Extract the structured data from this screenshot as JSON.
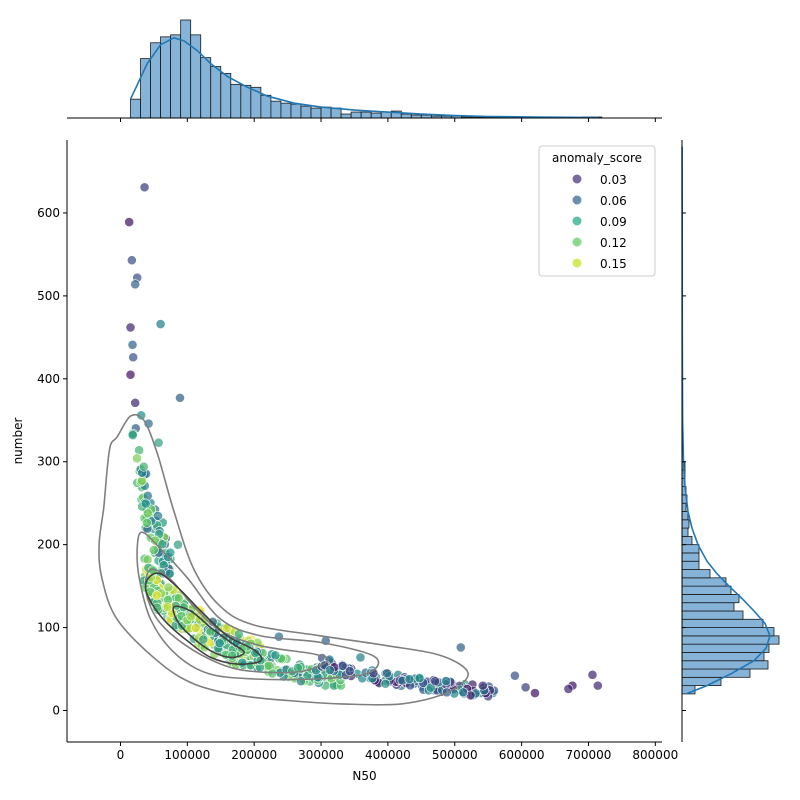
{
  "colors": {
    "hist_fill": "#86b4d9",
    "hist_edge": "#1a1a1a",
    "kde_line": "#1f77b4",
    "contour": "#7f7f7f",
    "contour_inner": "#404040"
  },
  "chart_data": {
    "type": "scatter",
    "layout": "jointplot",
    "xlabel": "N50",
    "ylabel": "number",
    "xlim": [
      -80000,
      810000
    ],
    "ylim": [
      -38,
      688
    ],
    "xticks": [
      0,
      100000,
      200000,
      300000,
      400000,
      500000,
      600000,
      700000,
      800000
    ],
    "xtick_labels": [
      "0",
      "100000",
      "200000",
      "300000",
      "400000",
      "500000",
      "600000",
      "700000",
      "800000"
    ],
    "yticks": [
      0,
      100,
      200,
      300,
      400,
      500,
      600
    ],
    "ytick_labels": [
      "0",
      "100",
      "200",
      "300",
      "400",
      "500",
      "600"
    ],
    "grid": false,
    "legend": {
      "title": "anomaly_score",
      "placement": "top-right",
      "entries": [
        {
          "label": "0.03",
          "color": "#46317e"
        },
        {
          "label": "0.06",
          "color": "#33638d"
        },
        {
          "label": "0.09",
          "color": "#21a685"
        },
        {
          "label": "0.12",
          "color": "#5ec962"
        },
        {
          "label": "0.15",
          "color": "#c6e021"
        }
      ]
    },
    "color_scale": {
      "min": 0.01,
      "max": 0.17,
      "stops": [
        "#440154",
        "#3b528b",
        "#21918c",
        "#5ec962",
        "#fde725"
      ]
    },
    "outliers": [
      {
        "x": 36000,
        "y": 631,
        "score": 0.04
      },
      {
        "x": 13000,
        "y": 589,
        "score": 0.02
      },
      {
        "x": 17000,
        "y": 543,
        "score": 0.05
      },
      {
        "x": 25000,
        "y": 522,
        "score": 0.05
      },
      {
        "x": 22000,
        "y": 514,
        "score": 0.06
      },
      {
        "x": 60000,
        "y": 466,
        "score": 0.08
      },
      {
        "x": 15000,
        "y": 462,
        "score": 0.03
      },
      {
        "x": 18000,
        "y": 441,
        "score": 0.06
      },
      {
        "x": 19000,
        "y": 426,
        "score": 0.05
      },
      {
        "x": 15000,
        "y": 405,
        "score": 0.02
      },
      {
        "x": 89000,
        "y": 377,
        "score": 0.06
      },
      {
        "x": 22000,
        "y": 371,
        "score": 0.03
      },
      {
        "x": 509000,
        "y": 76,
        "score": 0.06
      },
      {
        "x": 706000,
        "y": 43,
        "score": 0.03
      },
      {
        "x": 714000,
        "y": 30,
        "score": 0.03
      },
      {
        "x": 676000,
        "y": 30,
        "score": 0.02
      },
      {
        "x": 670000,
        "y": 26,
        "score": 0.03
      },
      {
        "x": 620000,
        "y": 21,
        "score": 0.02
      },
      {
        "x": 606000,
        "y": 28,
        "score": 0.04
      },
      {
        "x": 590000,
        "y": 42,
        "score": 0.05
      },
      {
        "x": 57000,
        "y": 323,
        "score": 0.1
      },
      {
        "x": 42000,
        "y": 346,
        "score": 0.07
      },
      {
        "x": 31000,
        "y": 356,
        "score": 0.09
      },
      {
        "x": 86000,
        "y": 200,
        "score": 0.1
      },
      {
        "x": 359000,
        "y": 64,
        "score": 0.08
      },
      {
        "x": 237000,
        "y": 89,
        "score": 0.07
      },
      {
        "x": 307000,
        "y": 84,
        "score": 0.06
      },
      {
        "x": 138000,
        "y": 107,
        "score": 0.06
      }
    ],
    "point_groups": [
      {
        "n": 80,
        "x": [
          18000,
          75000
        ],
        "y": [
          170,
          360
        ],
        "skew": -0.55,
        "score": [
          0.05,
          0.14
        ]
      },
      {
        "n": 260,
        "x": [
          35000,
          210000
        ],
        "y": [
          60,
          180
        ],
        "skew": -0.55,
        "score": [
          0.1,
          0.17
        ]
      },
      {
        "n": 140,
        "x": [
          130000,
          330000
        ],
        "y": [
          35,
          100
        ],
        "skew": -0.2,
        "score": [
          0.07,
          0.14
        ]
      },
      {
        "n": 130,
        "x": [
          300000,
          560000
        ],
        "y": [
          22,
          62
        ],
        "skew": -0.1,
        "score": [
          0.02,
          0.1
        ]
      }
    ],
    "contours": [
      [
        [
          15000,
          355
        ],
        [
          35000,
          350
        ],
        [
          55000,
          310
        ],
        [
          80000,
          240
        ],
        [
          110000,
          170
        ],
        [
          150000,
          125
        ],
        [
          200000,
          103
        ],
        [
          300000,
          90
        ],
        [
          400000,
          78
        ],
        [
          480000,
          66
        ],
        [
          520000,
          45
        ],
        [
          490000,
          22
        ],
        [
          420000,
          8
        ],
        [
          330000,
          8
        ],
        [
          250000,
          12
        ],
        [
          180000,
          18
        ],
        [
          110000,
          32
        ],
        [
          55000,
          60
        ],
        [
          -5000,
          110
        ],
        [
          -28000,
          160
        ],
        [
          -32000,
          200
        ],
        [
          -25000,
          245
        ],
        [
          -20000,
          290
        ],
        [
          -15000,
          320
        ],
        [
          -5000,
          330
        ]
      ],
      [
        [
          32000,
          215
        ],
        [
          60000,
          195
        ],
        [
          100000,
          160
        ],
        [
          150000,
          110
        ],
        [
          210000,
          90
        ],
        [
          300000,
          82
        ],
        [
          380000,
          65
        ],
        [
          370000,
          45
        ],
        [
          290000,
          38
        ],
        [
          200000,
          38
        ],
        [
          130000,
          45
        ],
        [
          80000,
          70
        ],
        [
          45000,
          110
        ],
        [
          28000,
          160
        ],
        [
          25000,
          195
        ]
      ],
      [
        [
          45000,
          170
        ],
        [
          75000,
          158
        ],
        [
          110000,
          125
        ],
        [
          150000,
          96
        ],
        [
          210000,
          78
        ],
        [
          290000,
          68
        ],
        [
          310000,
          60
        ],
        [
          270000,
          47
        ],
        [
          200000,
          47
        ],
        [
          150000,
          56
        ],
        [
          95000,
          80
        ],
        [
          55000,
          110
        ],
        [
          38000,
          145
        ]
      ],
      [
        [
          42000,
          160
        ],
        [
          60000,
          165
        ],
        [
          90000,
          145
        ],
        [
          120000,
          120
        ],
        [
          160000,
          90
        ],
        [
          200000,
          73
        ],
        [
          210000,
          60
        ],
        [
          175000,
          56
        ],
        [
          135000,
          64
        ],
        [
          100000,
          84
        ],
        [
          70000,
          105
        ],
        [
          50000,
          125
        ],
        [
          38000,
          145
        ]
      ],
      [
        [
          80000,
          125
        ],
        [
          105000,
          120
        ],
        [
          135000,
          100
        ],
        [
          165000,
          82
        ],
        [
          185000,
          70
        ],
        [
          165000,
          64
        ],
        [
          135000,
          72
        ],
        [
          105000,
          90
        ],
        [
          85000,
          108
        ]
      ]
    ],
    "top_hist": {
      "bins": [
        [
          15000,
          30000
        ],
        [
          30000,
          45000
        ],
        [
          45000,
          60000
        ],
        [
          60000,
          75000
        ],
        [
          75000,
          90000
        ],
        [
          90000,
          105000
        ],
        [
          105000,
          120000
        ],
        [
          120000,
          135000
        ],
        [
          135000,
          150000
        ],
        [
          150000,
          165000
        ],
        [
          165000,
          180000
        ],
        [
          180000,
          195000
        ],
        [
          195000,
          210000
        ],
        [
          210000,
          225000
        ],
        [
          225000,
          240000
        ],
        [
          240000,
          255000
        ],
        [
          255000,
          270000
        ],
        [
          270000,
          285000
        ],
        [
          285000,
          300000
        ],
        [
          300000,
          315000
        ],
        [
          315000,
          330000
        ],
        [
          330000,
          345000
        ],
        [
          345000,
          360000
        ],
        [
          360000,
          375000
        ],
        [
          375000,
          390000
        ],
        [
          390000,
          405000
        ],
        [
          405000,
          420000
        ],
        [
          420000,
          435000
        ],
        [
          435000,
          450000
        ],
        [
          450000,
          465000
        ],
        [
          465000,
          480000
        ],
        [
          480000,
          495000
        ],
        [
          495000,
          510000
        ],
        [
          510000,
          525000
        ],
        [
          525000,
          540000
        ],
        [
          540000,
          555000
        ],
        [
          555000,
          570000
        ],
        [
          570000,
          585000
        ],
        [
          585000,
          600000
        ],
        [
          600000,
          615000
        ],
        [
          615000,
          630000
        ],
        [
          630000,
          645000
        ],
        [
          645000,
          660000
        ],
        [
          660000,
          675000
        ],
        [
          675000,
          690000
        ],
        [
          690000,
          705000
        ],
        [
          705000,
          720000
        ]
      ],
      "counts": [
        19,
        60,
        76,
        82,
        84,
        99,
        84,
        61,
        52,
        45,
        34,
        33,
        31,
        23,
        17,
        15,
        14,
        12,
        10,
        11,
        10,
        4,
        6,
        6,
        5,
        6,
        7,
        4,
        3,
        3,
        2,
        2,
        2,
        1,
        1,
        1,
        1,
        1,
        0,
        0,
        1,
        1,
        1,
        0,
        0,
        1,
        1
      ],
      "kde": [
        [
          15000,
          19
        ],
        [
          40000,
          55
        ],
        [
          60000,
          74
        ],
        [
          80000,
          81
        ],
        [
          95000,
          78
        ],
        [
          115000,
          68
        ],
        [
          135000,
          55
        ],
        [
          160000,
          42
        ],
        [
          190000,
          31
        ],
        [
          220000,
          22
        ],
        [
          260000,
          15
        ],
        [
          300000,
          11
        ],
        [
          350000,
          8
        ],
        [
          400000,
          6
        ],
        [
          450000,
          4
        ],
        [
          500000,
          2.5
        ],
        [
          550000,
          1.5
        ],
        [
          620000,
          1
        ],
        [
          715000,
          0.5
        ]
      ]
    },
    "right_hist": {
      "bins": [
        [
          20,
          30
        ],
        [
          30,
          40
        ],
        [
          40,
          50
        ],
        [
          50,
          60
        ],
        [
          60,
          70
        ],
        [
          70,
          80
        ],
        [
          80,
          90
        ],
        [
          90,
          100
        ],
        [
          100,
          110
        ],
        [
          110,
          120
        ],
        [
          120,
          130
        ],
        [
          130,
          140
        ],
        [
          140,
          150
        ],
        [
          150,
          160
        ],
        [
          160,
          170
        ],
        [
          170,
          180
        ],
        [
          180,
          190
        ],
        [
          190,
          200
        ],
        [
          200,
          210
        ],
        [
          210,
          220
        ],
        [
          220,
          230
        ],
        [
          230,
          240
        ],
        [
          240,
          250
        ],
        [
          250,
          260
        ],
        [
          260,
          270
        ],
        [
          270,
          280
        ],
        [
          280,
          290
        ],
        [
          290,
          300
        ]
      ],
      "counts": [
        13,
        39,
        68,
        86,
        82,
        87,
        97,
        92,
        81,
        61,
        52,
        57,
        49,
        44,
        28,
        17,
        17,
        17,
        10,
        6,
        7,
        6,
        4,
        5,
        4,
        3,
        3,
        3
      ],
      "kde": [
        [
          20,
          4
        ],
        [
          30,
          25
        ],
        [
          45,
          50
        ],
        [
          60,
          72
        ],
        [
          75,
          84
        ],
        [
          90,
          88
        ],
        [
          105,
          83
        ],
        [
          120,
          72
        ],
        [
          135,
          60
        ],
        [
          150,
          47
        ],
        [
          165,
          35
        ],
        [
          180,
          25
        ],
        [
          200,
          16
        ],
        [
          220,
          10
        ],
        [
          240,
          6
        ],
        [
          270,
          3
        ],
        [
          300,
          1.5
        ],
        [
          350,
          0.6
        ],
        [
          450,
          0.3
        ],
        [
          600,
          0.2
        ],
        [
          680,
          0.1
        ]
      ]
    }
  }
}
